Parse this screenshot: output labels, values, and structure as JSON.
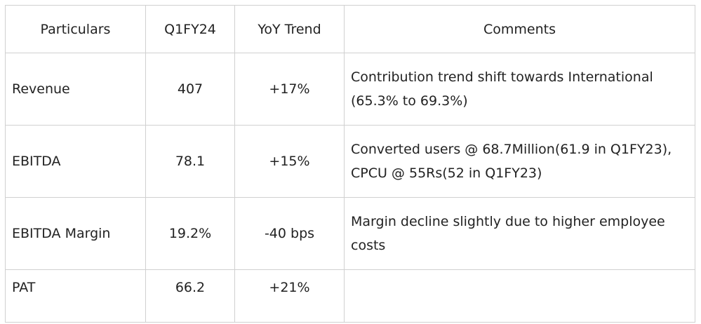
{
  "table": {
    "header": [
      "Particulars",
      "Q1FY24",
      "YoY Trend",
      "Comments"
    ],
    "rows": [
      [
        "Revenue",
        "407",
        "+17%",
        "Contribution trend shift towards International (65.3% to 69.3%)"
      ],
      [
        "EBITDA",
        "78.1",
        "+15%",
        "Converted users @ 68.7Million(61.9 in Q1FY23), CPCU @ 55Rs(52 in Q1FY23)"
      ],
      [
        "EBITDA Margin",
        "19.2%",
        "-40 bps",
        "Margin decline slightly due to higher employee costs"
      ],
      [
        "PAT",
        "66.2",
        "+21%"
      ]
    ]
  }
}
